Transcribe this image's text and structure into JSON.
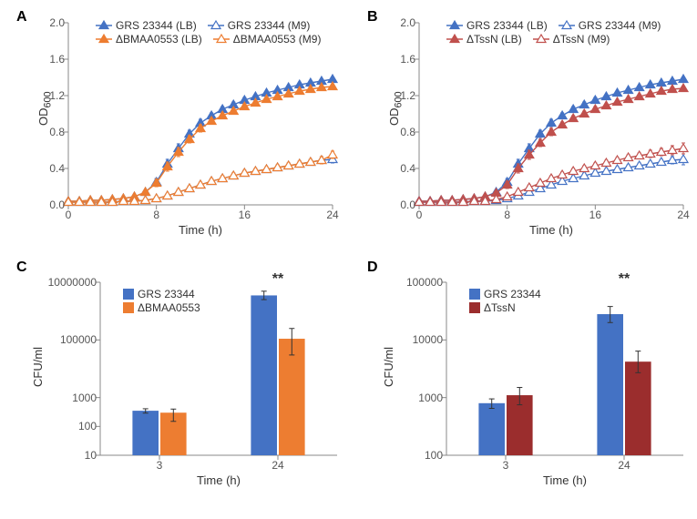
{
  "panelA": {
    "type": "line-scatter",
    "label": "A",
    "xlabel": "Time (h)",
    "ylabel": "OD",
    "ylabel_sub": "600",
    "xlim": [
      0,
      24
    ],
    "xticks": [
      0,
      8,
      16,
      24
    ],
    "ylim": [
      0,
      2.0
    ],
    "yticks": [
      0.0,
      0.4,
      0.8,
      1.2,
      1.6,
      2.0
    ],
    "series": [
      {
        "name": "GRS 23344 (LB)",
        "color": "#4472c4",
        "fill": true,
        "x": [
          0,
          1,
          2,
          3,
          4,
          5,
          6,
          7,
          8,
          9,
          10,
          11,
          12,
          13,
          14,
          15,
          16,
          17,
          18,
          19,
          20,
          21,
          22,
          23,
          24
        ],
        "y": [
          0.04,
          0.04,
          0.05,
          0.05,
          0.06,
          0.07,
          0.09,
          0.14,
          0.25,
          0.45,
          0.62,
          0.78,
          0.9,
          0.98,
          1.05,
          1.1,
          1.15,
          1.19,
          1.23,
          1.26,
          1.29,
          1.32,
          1.34,
          1.36,
          1.38
        ],
        "err": [
          0.01,
          0.01,
          0.01,
          0.01,
          0.01,
          0.01,
          0.01,
          0.02,
          0.04,
          0.05,
          0.05,
          0.04,
          0.04,
          0.03,
          0.03,
          0.03,
          0.03,
          0.02,
          0.02,
          0.02,
          0.02,
          0.02,
          0.02,
          0.02,
          0.02
        ]
      },
      {
        "name": "ΔBMAA0553 (LB)",
        "color": "#ed7d31",
        "fill": true,
        "x": [
          0,
          1,
          2,
          3,
          4,
          5,
          6,
          7,
          8,
          9,
          10,
          11,
          12,
          13,
          14,
          15,
          16,
          17,
          18,
          19,
          20,
          21,
          22,
          23,
          24
        ],
        "y": [
          0.04,
          0.04,
          0.05,
          0.05,
          0.06,
          0.07,
          0.09,
          0.14,
          0.24,
          0.42,
          0.58,
          0.72,
          0.84,
          0.92,
          0.98,
          1.03,
          1.08,
          1.12,
          1.16,
          1.19,
          1.22,
          1.25,
          1.27,
          1.29,
          1.3
        ],
        "err": [
          0.01,
          0.01,
          0.01,
          0.01,
          0.01,
          0.01,
          0.01,
          0.02,
          0.04,
          0.05,
          0.05,
          0.04,
          0.04,
          0.03,
          0.03,
          0.03,
          0.03,
          0.02,
          0.02,
          0.02,
          0.02,
          0.02,
          0.02,
          0.02,
          0.02
        ]
      },
      {
        "name": "GRS 23344 (M9)",
        "color": "#4472c4",
        "fill": false,
        "x": [
          0,
          1,
          2,
          3,
          4,
          5,
          6,
          7,
          8,
          9,
          10,
          11,
          12,
          13,
          14,
          15,
          16,
          17,
          18,
          19,
          20,
          21,
          22,
          23,
          24
        ],
        "y": [
          0.03,
          0.03,
          0.03,
          0.03,
          0.03,
          0.04,
          0.04,
          0.05,
          0.07,
          0.1,
          0.14,
          0.18,
          0.22,
          0.26,
          0.29,
          0.32,
          0.35,
          0.37,
          0.39,
          0.41,
          0.43,
          0.45,
          0.47,
          0.49,
          0.5
        ],
        "err": [
          0.01,
          0.01,
          0.01,
          0.01,
          0.01,
          0.01,
          0.01,
          0.01,
          0.02,
          0.02,
          0.03,
          0.03,
          0.03,
          0.03,
          0.03,
          0.03,
          0.03,
          0.03,
          0.03,
          0.03,
          0.03,
          0.03,
          0.03,
          0.04,
          0.04
        ]
      },
      {
        "name": "ΔBMAA0553 (M9)",
        "color": "#ed7d31",
        "fill": false,
        "x": [
          0,
          1,
          2,
          3,
          4,
          5,
          6,
          7,
          8,
          9,
          10,
          11,
          12,
          13,
          14,
          15,
          16,
          17,
          18,
          19,
          20,
          21,
          22,
          23,
          24
        ],
        "y": [
          0.03,
          0.03,
          0.03,
          0.03,
          0.03,
          0.04,
          0.04,
          0.05,
          0.07,
          0.1,
          0.14,
          0.18,
          0.22,
          0.26,
          0.29,
          0.32,
          0.35,
          0.37,
          0.39,
          0.41,
          0.43,
          0.45,
          0.47,
          0.49,
          0.55
        ],
        "err": [
          0.01,
          0.01,
          0.01,
          0.01,
          0.01,
          0.01,
          0.01,
          0.01,
          0.02,
          0.02,
          0.03,
          0.03,
          0.03,
          0.03,
          0.03,
          0.03,
          0.03,
          0.03,
          0.03,
          0.03,
          0.03,
          0.03,
          0.03,
          0.04,
          0.04
        ]
      }
    ],
    "legend_order": [
      [
        0,
        2
      ],
      [
        1,
        3
      ]
    ]
  },
  "panelB": {
    "type": "line-scatter",
    "label": "B",
    "xlabel": "Time (h)",
    "ylabel": "OD",
    "ylabel_sub": "600",
    "xlim": [
      0,
      24
    ],
    "xticks": [
      0,
      8,
      16,
      24
    ],
    "ylim": [
      0,
      2.0
    ],
    "yticks": [
      0.0,
      0.4,
      0.8,
      1.2,
      1.6,
      2.0
    ],
    "series": [
      {
        "name": "GRS 23344 (LB)",
        "color": "#4472c4",
        "fill": true,
        "x": [
          0,
          1,
          2,
          3,
          4,
          5,
          6,
          7,
          8,
          9,
          10,
          11,
          12,
          13,
          14,
          15,
          16,
          17,
          18,
          19,
          20,
          21,
          22,
          23,
          24
        ],
        "y": [
          0.04,
          0.04,
          0.05,
          0.05,
          0.06,
          0.07,
          0.09,
          0.14,
          0.25,
          0.45,
          0.62,
          0.78,
          0.9,
          0.98,
          1.05,
          1.1,
          1.15,
          1.19,
          1.23,
          1.26,
          1.29,
          1.32,
          1.34,
          1.36,
          1.38
        ],
        "err": [
          0.01,
          0.01,
          0.01,
          0.01,
          0.01,
          0.01,
          0.01,
          0.02,
          0.04,
          0.05,
          0.05,
          0.04,
          0.04,
          0.03,
          0.03,
          0.03,
          0.03,
          0.02,
          0.02,
          0.02,
          0.02,
          0.02,
          0.02,
          0.02,
          0.02
        ]
      },
      {
        "name": "ΔTssN (LB)",
        "color": "#c0504d",
        "fill": true,
        "x": [
          0,
          1,
          2,
          3,
          4,
          5,
          6,
          7,
          8,
          9,
          10,
          11,
          12,
          13,
          14,
          15,
          16,
          17,
          18,
          19,
          20,
          21,
          22,
          23,
          24
        ],
        "y": [
          0.04,
          0.04,
          0.05,
          0.05,
          0.06,
          0.07,
          0.09,
          0.13,
          0.22,
          0.4,
          0.55,
          0.68,
          0.8,
          0.88,
          0.95,
          1.0,
          1.05,
          1.09,
          1.13,
          1.16,
          1.19,
          1.22,
          1.25,
          1.27,
          1.28
        ],
        "err": [
          0.01,
          0.01,
          0.01,
          0.01,
          0.01,
          0.01,
          0.01,
          0.02,
          0.04,
          0.05,
          0.05,
          0.04,
          0.04,
          0.03,
          0.03,
          0.03,
          0.03,
          0.02,
          0.02,
          0.02,
          0.02,
          0.02,
          0.02,
          0.02,
          0.02
        ]
      },
      {
        "name": "GRS 23344 (M9)",
        "color": "#4472c4",
        "fill": false,
        "x": [
          0,
          1,
          2,
          3,
          4,
          5,
          6,
          7,
          8,
          9,
          10,
          11,
          12,
          13,
          14,
          15,
          16,
          17,
          18,
          19,
          20,
          21,
          22,
          23,
          24
        ],
        "y": [
          0.03,
          0.03,
          0.03,
          0.03,
          0.03,
          0.04,
          0.04,
          0.05,
          0.07,
          0.1,
          0.14,
          0.18,
          0.22,
          0.26,
          0.29,
          0.32,
          0.35,
          0.37,
          0.39,
          0.41,
          0.43,
          0.45,
          0.47,
          0.49,
          0.5
        ],
        "err": [
          0.01,
          0.01,
          0.01,
          0.01,
          0.01,
          0.01,
          0.01,
          0.01,
          0.02,
          0.02,
          0.03,
          0.03,
          0.03,
          0.03,
          0.03,
          0.03,
          0.03,
          0.03,
          0.03,
          0.03,
          0.03,
          0.03,
          0.03,
          0.04,
          0.06
        ]
      },
      {
        "name": "ΔTssN (M9)",
        "color": "#c0504d",
        "fill": false,
        "x": [
          0,
          1,
          2,
          3,
          4,
          5,
          6,
          7,
          8,
          9,
          10,
          11,
          12,
          13,
          14,
          15,
          16,
          17,
          18,
          19,
          20,
          21,
          22,
          23,
          24
        ],
        "y": [
          0.03,
          0.03,
          0.03,
          0.03,
          0.03,
          0.04,
          0.04,
          0.06,
          0.09,
          0.14,
          0.19,
          0.24,
          0.29,
          0.33,
          0.37,
          0.4,
          0.43,
          0.46,
          0.49,
          0.52,
          0.54,
          0.56,
          0.58,
          0.6,
          0.62
        ],
        "err": [
          0.01,
          0.01,
          0.01,
          0.01,
          0.01,
          0.01,
          0.01,
          0.01,
          0.02,
          0.02,
          0.03,
          0.03,
          0.03,
          0.03,
          0.03,
          0.03,
          0.03,
          0.03,
          0.03,
          0.03,
          0.03,
          0.04,
          0.04,
          0.05,
          0.06
        ]
      }
    ],
    "legend_order": [
      [
        0,
        2
      ],
      [
        1,
        3
      ]
    ]
  },
  "panelC": {
    "type": "bar-log",
    "label": "C",
    "xlabel": "Time (h)",
    "ylabel": "CFU/ml",
    "categories": [
      "3",
      "24"
    ],
    "yticks": [
      10,
      100,
      1000,
      100000,
      10000000
    ],
    "ytick_labels": [
      "10",
      "100",
      "1000",
      "100000",
      "10000000"
    ],
    "ylim": [
      10,
      10000000
    ],
    "series": [
      {
        "name": "GRS 23344",
        "color": "#4472c4",
        "values": [
          350,
          3500000
        ],
        "err_up": [
          60,
          1400000
        ],
        "err_down": [
          60,
          1000000
        ]
      },
      {
        "name": "ΔBMAA0553",
        "color": "#ed7d31",
        "values": [
          300,
          110000
        ],
        "err_up": [
          100,
          140000
        ],
        "err_down": [
          150,
          80000
        ]
      }
    ],
    "sig_marker": "**",
    "sig_at_category": 1
  },
  "panelD": {
    "type": "bar-log",
    "label": "D",
    "xlabel": "Time (h)",
    "ylabel": "CFU/ml",
    "categories": [
      "3",
      "24"
    ],
    "yticks": [
      100,
      1000,
      10000,
      100000
    ],
    "ytick_labels": [
      "100",
      "1000",
      "10000",
      "100000"
    ],
    "ylim": [
      100,
      100000
    ],
    "series": [
      {
        "name": "GRS 23344",
        "color": "#4472c4",
        "values": [
          800,
          28000
        ],
        "err_up": [
          150,
          10000
        ],
        "err_down": [
          150,
          8000
        ]
      },
      {
        "name": "ΔTssN",
        "color": "#9b2d2d",
        "values": [
          1100,
          4200
        ],
        "err_up": [
          400,
          2200
        ],
        "err_down": [
          350,
          1500
        ]
      }
    ],
    "sig_marker": "**",
    "sig_at_category": 1
  },
  "layout": {
    "line_plot_w": 290,
    "line_plot_h": 200,
    "bar_plot_w": 260,
    "bar_plot_h": 190,
    "marker_size": 5,
    "line_width": 1.4,
    "err_cap": 3,
    "colors": {
      "axis": "#888888",
      "text": "#333333"
    }
  }
}
